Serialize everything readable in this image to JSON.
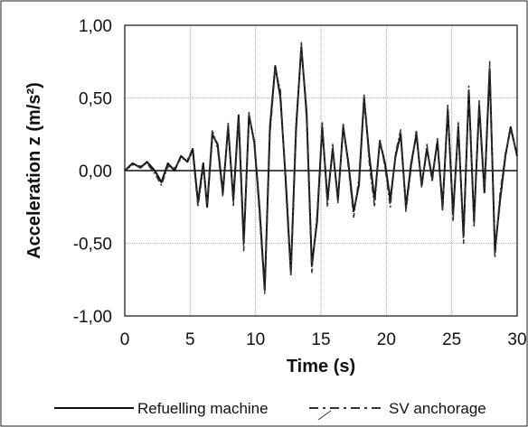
{
  "chart_data": {
    "type": "line",
    "title": "",
    "xlabel": "Time (s)",
    "ylabel": "Acceleration z (m/s²)",
    "xlim": [
      0,
      30
    ],
    "ylim": [
      -1.0,
      1.0
    ],
    "x_ticks": [
      0,
      5,
      10,
      15,
      20,
      25,
      30
    ],
    "x_tick_labels": [
      "0",
      "5",
      "10",
      "15",
      "20",
      "25",
      "30"
    ],
    "y_ticks": [
      1.0,
      0.5,
      0.0,
      -0.5,
      -1.0
    ],
    "y_tick_labels": [
      "1,00",
      "0,50",
      "0,00",
      "-0,50",
      "-1,00"
    ],
    "grid": true,
    "legend_position": "bottom",
    "series": [
      {
        "name": "Refuelling machine",
        "style": "solid",
        "color": "#111111",
        "points": [
          [
            0.0,
            0.0
          ],
          [
            0.6,
            0.05
          ],
          [
            1.2,
            0.02
          ],
          [
            1.7,
            0.06
          ],
          [
            2.3,
            0.0
          ],
          [
            2.8,
            -0.08
          ],
          [
            3.3,
            0.05
          ],
          [
            3.8,
            0.0
          ],
          [
            4.3,
            0.1
          ],
          [
            4.8,
            0.06
          ],
          [
            5.2,
            0.15
          ],
          [
            5.6,
            -0.22
          ],
          [
            6.0,
            0.05
          ],
          [
            6.3,
            -0.25
          ],
          [
            6.7,
            0.25
          ],
          [
            7.1,
            0.18
          ],
          [
            7.5,
            -0.15
          ],
          [
            7.9,
            0.3
          ],
          [
            8.3,
            -0.2
          ],
          [
            8.7,
            0.38
          ],
          [
            9.1,
            -0.5
          ],
          [
            9.5,
            0.38
          ],
          [
            9.9,
            0.2
          ],
          [
            10.3,
            -0.25
          ],
          [
            10.7,
            -0.82
          ],
          [
            11.1,
            0.3
          ],
          [
            11.5,
            0.72
          ],
          [
            11.9,
            0.5
          ],
          [
            12.3,
            -0.05
          ],
          [
            12.7,
            -0.7
          ],
          [
            13.1,
            0.3
          ],
          [
            13.5,
            0.85
          ],
          [
            13.9,
            0.4
          ],
          [
            14.3,
            -0.65
          ],
          [
            14.7,
            -0.35
          ],
          [
            15.1,
            0.3
          ],
          [
            15.5,
            -0.2
          ],
          [
            15.9,
            0.15
          ],
          [
            16.3,
            -0.2
          ],
          [
            16.7,
            0.3
          ],
          [
            17.1,
            0.05
          ],
          [
            17.5,
            -0.28
          ],
          [
            17.9,
            -0.1
          ],
          [
            18.3,
            0.5
          ],
          [
            18.7,
            0.1
          ],
          [
            19.1,
            -0.2
          ],
          [
            19.5,
            0.2
          ],
          [
            19.9,
            0.05
          ],
          [
            20.3,
            -0.2
          ],
          [
            20.7,
            0.1
          ],
          [
            21.1,
            0.25
          ],
          [
            21.5,
            -0.25
          ],
          [
            21.9,
            0.05
          ],
          [
            22.3,
            0.25
          ],
          [
            22.7,
            -0.1
          ],
          [
            23.1,
            0.15
          ],
          [
            23.5,
            -0.05
          ],
          [
            23.9,
            0.2
          ],
          [
            24.3,
            -0.25
          ],
          [
            24.7,
            0.42
          ],
          [
            25.1,
            -0.3
          ],
          [
            25.5,
            0.3
          ],
          [
            25.9,
            -0.45
          ],
          [
            26.3,
            0.55
          ],
          [
            26.7,
            -0.35
          ],
          [
            27.1,
            0.45
          ],
          [
            27.5,
            -0.15
          ],
          [
            27.9,
            0.7
          ],
          [
            28.3,
            -0.55
          ],
          [
            28.7,
            -0.2
          ],
          [
            29.1,
            0.1
          ],
          [
            29.5,
            0.3
          ],
          [
            30.0,
            0.1
          ]
        ]
      },
      {
        "name": "SV anchorage",
        "style": "dashed",
        "color": "#333333",
        "points": [
          [
            0.0,
            0.0
          ],
          [
            0.6,
            0.04
          ],
          [
            1.2,
            0.03
          ],
          [
            1.7,
            0.05
          ],
          [
            2.3,
            -0.02
          ],
          [
            2.8,
            -0.1
          ],
          [
            3.3,
            0.03
          ],
          [
            3.8,
            0.02
          ],
          [
            4.3,
            0.08
          ],
          [
            4.8,
            0.08
          ],
          [
            5.2,
            0.12
          ],
          [
            5.6,
            -0.25
          ],
          [
            6.0,
            0.02
          ],
          [
            6.3,
            -0.22
          ],
          [
            6.7,
            0.28
          ],
          [
            7.1,
            0.15
          ],
          [
            7.5,
            -0.18
          ],
          [
            7.9,
            0.33
          ],
          [
            8.3,
            -0.24
          ],
          [
            8.7,
            0.35
          ],
          [
            9.1,
            -0.55
          ],
          [
            9.5,
            0.4
          ],
          [
            9.9,
            0.18
          ],
          [
            10.3,
            -0.3
          ],
          [
            10.7,
            -0.85
          ],
          [
            11.1,
            0.25
          ],
          [
            11.5,
            0.7
          ],
          [
            11.9,
            0.55
          ],
          [
            12.3,
            -0.1
          ],
          [
            12.7,
            -0.73
          ],
          [
            13.1,
            0.25
          ],
          [
            13.5,
            0.88
          ],
          [
            13.9,
            0.35
          ],
          [
            14.3,
            -0.7
          ],
          [
            14.7,
            -0.3
          ],
          [
            15.1,
            0.33
          ],
          [
            15.5,
            -0.25
          ],
          [
            15.9,
            0.18
          ],
          [
            16.3,
            -0.22
          ],
          [
            16.7,
            0.32
          ],
          [
            17.1,
            0.02
          ],
          [
            17.5,
            -0.32
          ],
          [
            17.9,
            -0.05
          ],
          [
            18.3,
            0.52
          ],
          [
            18.7,
            0.05
          ],
          [
            19.1,
            -0.25
          ],
          [
            19.5,
            0.22
          ],
          [
            19.9,
            0.02
          ],
          [
            20.3,
            -0.25
          ],
          [
            20.7,
            0.12
          ],
          [
            21.1,
            0.28
          ],
          [
            21.5,
            -0.28
          ],
          [
            21.9,
            0.02
          ],
          [
            22.3,
            0.28
          ],
          [
            22.7,
            -0.12
          ],
          [
            23.1,
            0.18
          ],
          [
            23.5,
            -0.08
          ],
          [
            23.9,
            0.22
          ],
          [
            24.3,
            -0.28
          ],
          [
            24.7,
            0.45
          ],
          [
            25.1,
            -0.35
          ],
          [
            25.5,
            0.33
          ],
          [
            25.9,
            -0.5
          ],
          [
            26.3,
            0.58
          ],
          [
            26.7,
            -0.38
          ],
          [
            27.1,
            0.48
          ],
          [
            27.5,
            -0.12
          ],
          [
            27.9,
            0.75
          ],
          [
            28.3,
            -0.6
          ],
          [
            28.7,
            -0.15
          ],
          [
            29.1,
            0.12
          ],
          [
            29.5,
            0.28
          ],
          [
            30.0,
            0.12
          ]
        ]
      }
    ]
  }
}
